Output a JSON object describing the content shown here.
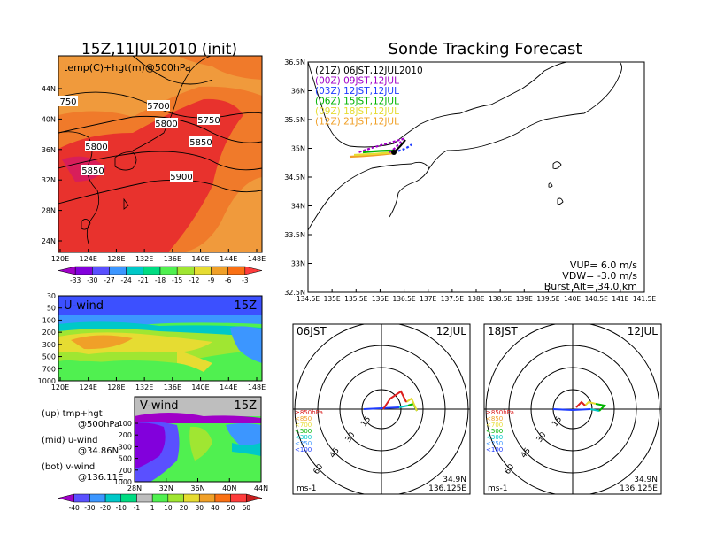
{
  "init_title": "15Z,11JUL2010 (init)",
  "main_title": "Sonde Tracking Forecast",
  "top_map": {
    "label": "temp(C)+hgt(m)@500hPa",
    "lat_ticks": [
      "44N",
      "40N",
      "36N",
      "32N",
      "28N",
      "24N"
    ],
    "lon_ticks": [
      "120E",
      "124E",
      "128E",
      "132E",
      "136E",
      "140E",
      "144E",
      "148E"
    ],
    "contours": [
      "5700",
      "5750",
      "5800",
      "5800",
      "5850",
      "5850",
      "5900",
      "750"
    ],
    "colorbar_ticks": [
      "-33",
      "-30",
      "-27",
      "-24",
      "-21",
      "-18",
      "-15",
      "-12",
      "-9",
      "-6",
      "-3"
    ],
    "colorbar_colors": [
      "#a000c8",
      "#8200dc",
      "#5a50ff",
      "#3c96ff",
      "#00c8c8",
      "#00dc82",
      "#50f050",
      "#a0e632",
      "#e6dc32",
      "#f0a028",
      "#fa7014",
      "#ff3c3c"
    ]
  },
  "u_wind": {
    "label": "U-wind",
    "time": "15Z",
    "y_ticks": [
      "30",
      "50",
      "100",
      "200",
      "300",
      "500",
      "700",
      "1000"
    ],
    "x_ticks": [
      "120E",
      "124E",
      "128E",
      "132E",
      "136E",
      "140E",
      "144E",
      "148E"
    ]
  },
  "v_wind": {
    "label": "V-wind",
    "time": "15Z",
    "y_ticks": [
      "100",
      "200",
      "300",
      "500",
      "700",
      "1000"
    ],
    "x_ticks": [
      "28N",
      "32N",
      "36N",
      "40N",
      "44N"
    ]
  },
  "wind_colorbar": {
    "ticks": [
      "-40",
      "-30",
      "-20",
      "-10",
      "-1",
      "1",
      "10",
      "20",
      "30",
      "40",
      "50",
      "60"
    ],
    "colors": [
      "#a000c8",
      "#5a50ff",
      "#3c96ff",
      "#00c8c8",
      "#00dc82",
      "#bebebe",
      "#50f050",
      "#a0e632",
      "#e6dc32",
      "#f0a028",
      "#fa7014",
      "#ff3c3c",
      "#c81e1e"
    ]
  },
  "notes": {
    "up1": "(up) tmp+hgt",
    "up2": "@500hPa",
    "mid1": "(mid) u-wind",
    "mid2": "@34.86N",
    "bot1": "(bot) v-wind",
    "bot2": "@136.11E"
  },
  "track_map": {
    "lat_ticks": [
      "36.5N",
      "36N",
      "35.5N",
      "35N",
      "34.5N",
      "34N",
      "33.5N",
      "33N",
      "32.5N"
    ],
    "lon_ticks": [
      "134.5E",
      "135E",
      "135.5E",
      "136E",
      "136.5E",
      "137E",
      "137.5E",
      "138E",
      "138.5E",
      "139E",
      "139.5E",
      "140E",
      "140.5E",
      "141E",
      "141.5E"
    ],
    "legend": [
      {
        "text": "(21Z) 06JST,12JUL2010",
        "color": "#000000"
      },
      {
        "text": "(00Z) 09JST,12JUL",
        "color": "#a000c8"
      },
      {
        "text": "(03Z) 12JST,12JUL",
        "color": "#1e3cff"
      },
      {
        "text": "(06Z) 15JST,12JUL",
        "color": "#00b400"
      },
      {
        "text": "(09Z) 18JST,12JUL",
        "color": "#e6dc32"
      },
      {
        "text": "(12Z) 21JST,12JUL",
        "color": "#f0a028"
      }
    ],
    "vup": "VUP=  6.0  m/s",
    "vdw": "VDW= -3.0  m/s",
    "burst": "Burst Alt= 34.0  km"
  },
  "hodographs": [
    {
      "time": "06JST",
      "date": "12JUL",
      "rings": [
        "15",
        "30",
        "45",
        "60"
      ],
      "unit": "ms-1",
      "lat": "34.9N",
      "lon": "136.125E"
    },
    {
      "time": "18JST",
      "date": "12JUL",
      "rings": [
        "15",
        "30",
        "45",
        "60"
      ],
      "unit": "ms-1",
      "lat": "34.9N",
      "lon": "136.125E"
    }
  ],
  "hodo_legend": [
    {
      "text": "≥850hPa",
      "color": "#dc1e1e"
    },
    {
      "text": "<850",
      "color": "#f0a028"
    },
    {
      "text": "<700",
      "color": "#e6dc32"
    },
    {
      "text": "<500",
      "color": "#00b400"
    },
    {
      "text": "<300",
      "color": "#00c8c8"
    },
    {
      "text": "<250",
      "color": "#3c96ff"
    },
    {
      "text": "<100",
      "color": "#1e3cff"
    }
  ]
}
